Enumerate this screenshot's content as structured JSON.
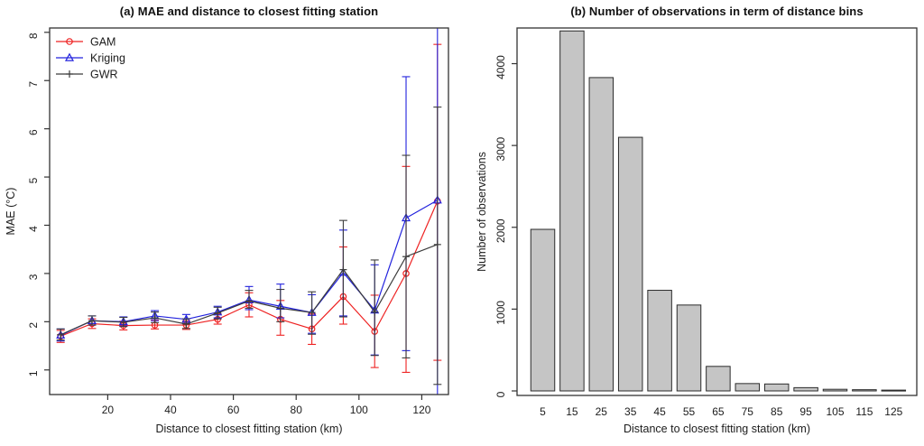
{
  "figure": {
    "background": "#ffffff",
    "text_color": "#1c1c1c",
    "frame_color": "#333333"
  },
  "chart_data": [
    {
      "type": "line",
      "panel": "a",
      "title": "(a) MAE and distance to closest fitting station",
      "xlabel": "Distance to closest fitting station (km)",
      "ylabel": "MAE (°C)",
      "x": [
        5,
        15,
        25,
        35,
        45,
        55,
        65,
        75,
        85,
        95,
        105,
        115,
        125
      ],
      "xticks": [
        20,
        40,
        60,
        80,
        100,
        120
      ],
      "yticks": [
        1,
        2,
        3,
        4,
        5,
        6,
        7,
        8
      ],
      "xlim": [
        1.5,
        128.5
      ],
      "ylim": [
        0.49,
        8.09
      ],
      "grid": false,
      "error_bars": true,
      "legend_position": "top-left",
      "series": [
        {
          "name": "GAM",
          "color": "#ee2222",
          "marker": "circle",
          "values": [
            1.7,
            1.96,
            1.92,
            1.93,
            1.93,
            2.05,
            2.35,
            2.05,
            1.85,
            2.52,
            1.8,
            3.0,
            4.5
          ],
          "lower": [
            1.57,
            1.86,
            1.83,
            1.85,
            1.84,
            1.95,
            2.1,
            1.72,
            1.53,
            1.95,
            1.05,
            0.95,
            1.2
          ],
          "upper": [
            1.82,
            2.06,
            2.01,
            2.03,
            2.02,
            2.16,
            2.6,
            2.44,
            2.16,
            3.55,
            2.55,
            5.22,
            7.75
          ]
        },
        {
          "name": "Kriging",
          "color": "#2222dd",
          "marker": "triangle",
          "values": [
            1.72,
            2.02,
            2.0,
            2.12,
            2.05,
            2.2,
            2.45,
            2.32,
            2.19,
            3.02,
            2.24,
            4.15,
            4.52
          ],
          "lower": [
            1.6,
            1.93,
            1.91,
            2.02,
            1.96,
            2.08,
            2.25,
            2.08,
            1.76,
            2.12,
            1.31,
            1.4,
            0.2
          ],
          "upper": [
            1.85,
            2.12,
            2.1,
            2.23,
            2.15,
            2.32,
            2.73,
            2.78,
            2.56,
            3.9,
            3.18,
            7.08,
            8.6
          ]
        },
        {
          "name": "GWR",
          "color": "#3c3c3c",
          "marker": "plus",
          "values": [
            1.73,
            2.02,
            1.99,
            2.08,
            1.95,
            2.18,
            2.43,
            2.28,
            2.19,
            3.08,
            2.2,
            3.35,
            3.6
          ],
          "lower": [
            1.62,
            1.93,
            1.9,
            1.98,
            1.86,
            2.06,
            2.28,
            2.0,
            1.74,
            2.1,
            1.3,
            1.25,
            0.7
          ],
          "upper": [
            1.85,
            2.12,
            2.09,
            2.2,
            2.06,
            2.3,
            2.65,
            2.67,
            2.62,
            4.1,
            3.28,
            5.45,
            6.45
          ]
        }
      ]
    },
    {
      "type": "bar",
      "panel": "b",
      "title": "(b) Number of observations in term of distance bins",
      "xlabel": "Distance to closest fitting station (km)",
      "ylabel": "Number of observations",
      "categories": [
        "5",
        "15",
        "25",
        "35",
        "45",
        "55",
        "65",
        "75",
        "85",
        "95",
        "105",
        "115",
        "125"
      ],
      "values": [
        1975,
        4400,
        3830,
        3100,
        1230,
        1050,
        300,
        90,
        85,
        40,
        20,
        15,
        10
      ],
      "yticks": [
        0,
        1000,
        2000,
        3000,
        4000
      ],
      "ylim": [
        0,
        4436
      ],
      "grid": false,
      "bar_fill": "#c5c5c5",
      "bar_border": "#2b2b2b"
    }
  ]
}
